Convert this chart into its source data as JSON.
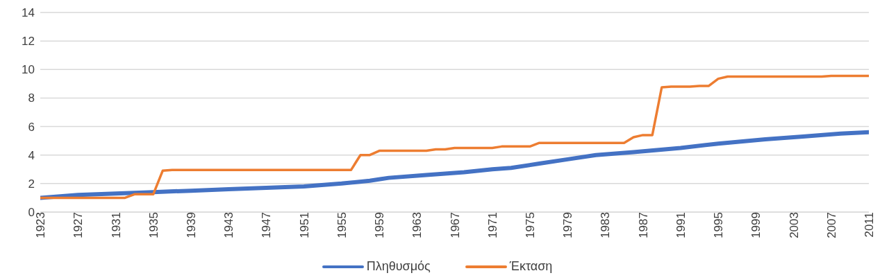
{
  "chart_data": {
    "type": "line",
    "xlim": [
      1923,
      2011
    ],
    "xticks": [
      1923,
      1927,
      1931,
      1935,
      1939,
      1943,
      1947,
      1951,
      1955,
      1959,
      1963,
      1967,
      1971,
      1975,
      1979,
      1983,
      1987,
      1991,
      1995,
      1999,
      2003,
      2007,
      2011
    ],
    "ylim": [
      0,
      14
    ],
    "yticks": [
      0,
      2,
      4,
      6,
      8,
      10,
      12,
      14
    ],
    "series": [
      {
        "name": "Πληθυσμός",
        "color": "#4472c4",
        "x": [
          1923,
          1927,
          1931,
          1935,
          1939,
          1943,
          1947,
          1951,
          1955,
          1958,
          1960,
          1964,
          1968,
          1971,
          1973,
          1976,
          1979,
          1982,
          1986,
          1991,
          1995,
          2000,
          2004,
          2008,
          2011
        ],
        "values": [
          1.0,
          1.2,
          1.3,
          1.4,
          1.5,
          1.6,
          1.7,
          1.8,
          2.0,
          2.2,
          2.4,
          2.6,
          2.8,
          3.0,
          3.1,
          3.4,
          3.7,
          4.0,
          4.2,
          4.5,
          4.8,
          5.1,
          5.3,
          5.5,
          5.6
        ]
      },
      {
        "name": "Έκταση",
        "color": "#ed7d31",
        "x": [
          1923,
          1932,
          1933,
          1935,
          1936,
          1937,
          1956,
          1957,
          1958,
          1959,
          1964,
          1965,
          1966,
          1967,
          1971,
          1972,
          1975,
          1976,
          1985,
          1986,
          1987,
          1988,
          1989,
          1990,
          1992,
          1993,
          1994,
          1995,
          1996,
          2006,
          2007,
          2011
        ],
        "values": [
          1.0,
          1.0,
          1.25,
          1.25,
          2.9,
          2.95,
          2.95,
          4.0,
          4.0,
          4.3,
          4.3,
          4.4,
          4.4,
          4.5,
          4.5,
          4.6,
          4.6,
          4.85,
          4.85,
          5.25,
          5.4,
          5.4,
          8.75,
          8.8,
          8.8,
          8.85,
          8.85,
          9.35,
          9.5,
          9.5,
          9.55,
          9.55
        ]
      }
    ],
    "grid": "y",
    "legend": "bottom",
    "marker": "none",
    "line_style": "solid"
  }
}
